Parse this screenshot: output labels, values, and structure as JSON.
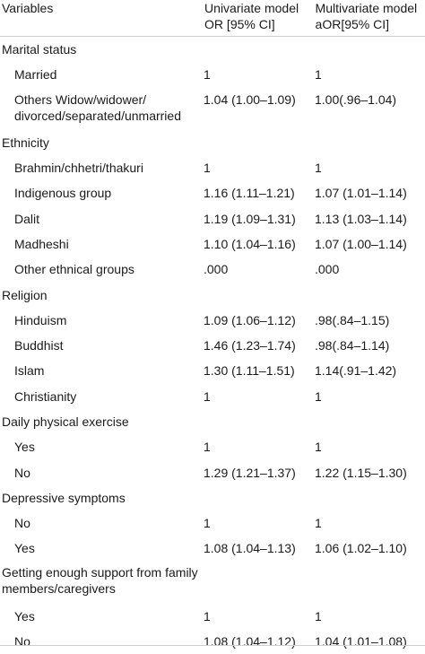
{
  "header": {
    "variables": "Variables",
    "univariate_line1": "Univariate model",
    "univariate_line2": "OR [95% CI]",
    "multivariate_line1": "Multivariate model",
    "multivariate_line2": "aOR[95% CI]"
  },
  "rows": [
    {
      "label": "Marital status",
      "or": "",
      "aor": ""
    },
    {
      "label": "Married",
      "or": "1",
      "aor": "1"
    },
    {
      "label_line1": "Others Widow/widower/",
      "label_line2": "divorced/separated/unmarried",
      "or": "1.04 (1.00–1.09)",
      "aor": "1.00(.96–1.04)"
    },
    {
      "label": "Ethnicity",
      "or": "",
      "aor": ""
    },
    {
      "label": "Brahmin/chhetri/thakuri",
      "or": "1",
      "aor": "1"
    },
    {
      "label": "Indigenous group",
      "or": "1.16 (1.11–1.21)",
      "aor": "1.07 (1.01–1.14)"
    },
    {
      "label": "Dalit",
      "or": "1.19 (1.09–1.31)",
      "aor": "1.13 (1.03–1.14)"
    },
    {
      "label": "Madheshi",
      "or": "1.10 (1.04–1.16)",
      "aor": "1.07 (1.00–1.14)"
    },
    {
      "label": "Other ethnical groups",
      "or": ".000",
      "aor": ".000"
    },
    {
      "label": "Religion",
      "or": "",
      "aor": ""
    },
    {
      "label": "Hinduism",
      "or": "1.09 (1.06–1.12)",
      "aor": ".98(.84–1.15)"
    },
    {
      "label": "Buddhist",
      "or": "1.46 (1.23–1.74)",
      "aor": ".98(.84–1.14)"
    },
    {
      "label": "Islam",
      "or": "1.30 (1.11–1.51)",
      "aor": "1.14(.91–1.42)"
    },
    {
      "label": "Christianity",
      "or": "1",
      "aor": "1"
    },
    {
      "label": "Daily physical exercise",
      "or": "",
      "aor": ""
    },
    {
      "label": "Yes",
      "or": "1",
      "aor": "1"
    },
    {
      "label": "No",
      "or": "1.29 (1.21–1.37)",
      "aor": "1.22 (1.15–1.30)"
    },
    {
      "label": "Depressive symptoms",
      "or": "",
      "aor": ""
    },
    {
      "label": "No",
      "or": "1",
      "aor": "1"
    },
    {
      "label": "Yes",
      "or": "1.08 (1.04–1.13)",
      "aor": "1.06 (1.02–1.10)"
    },
    {
      "label_line1": "Getting enough support from family",
      "label_line2": "members/caregivers",
      "or": "",
      "aor": ""
    },
    {
      "label": "Yes",
      "or": "1",
      "aor": "1"
    },
    {
      "label": "No",
      "or": "1.08 (1.04–1.12)",
      "aor": "1.04 (1.01–1.08)"
    }
  ]
}
